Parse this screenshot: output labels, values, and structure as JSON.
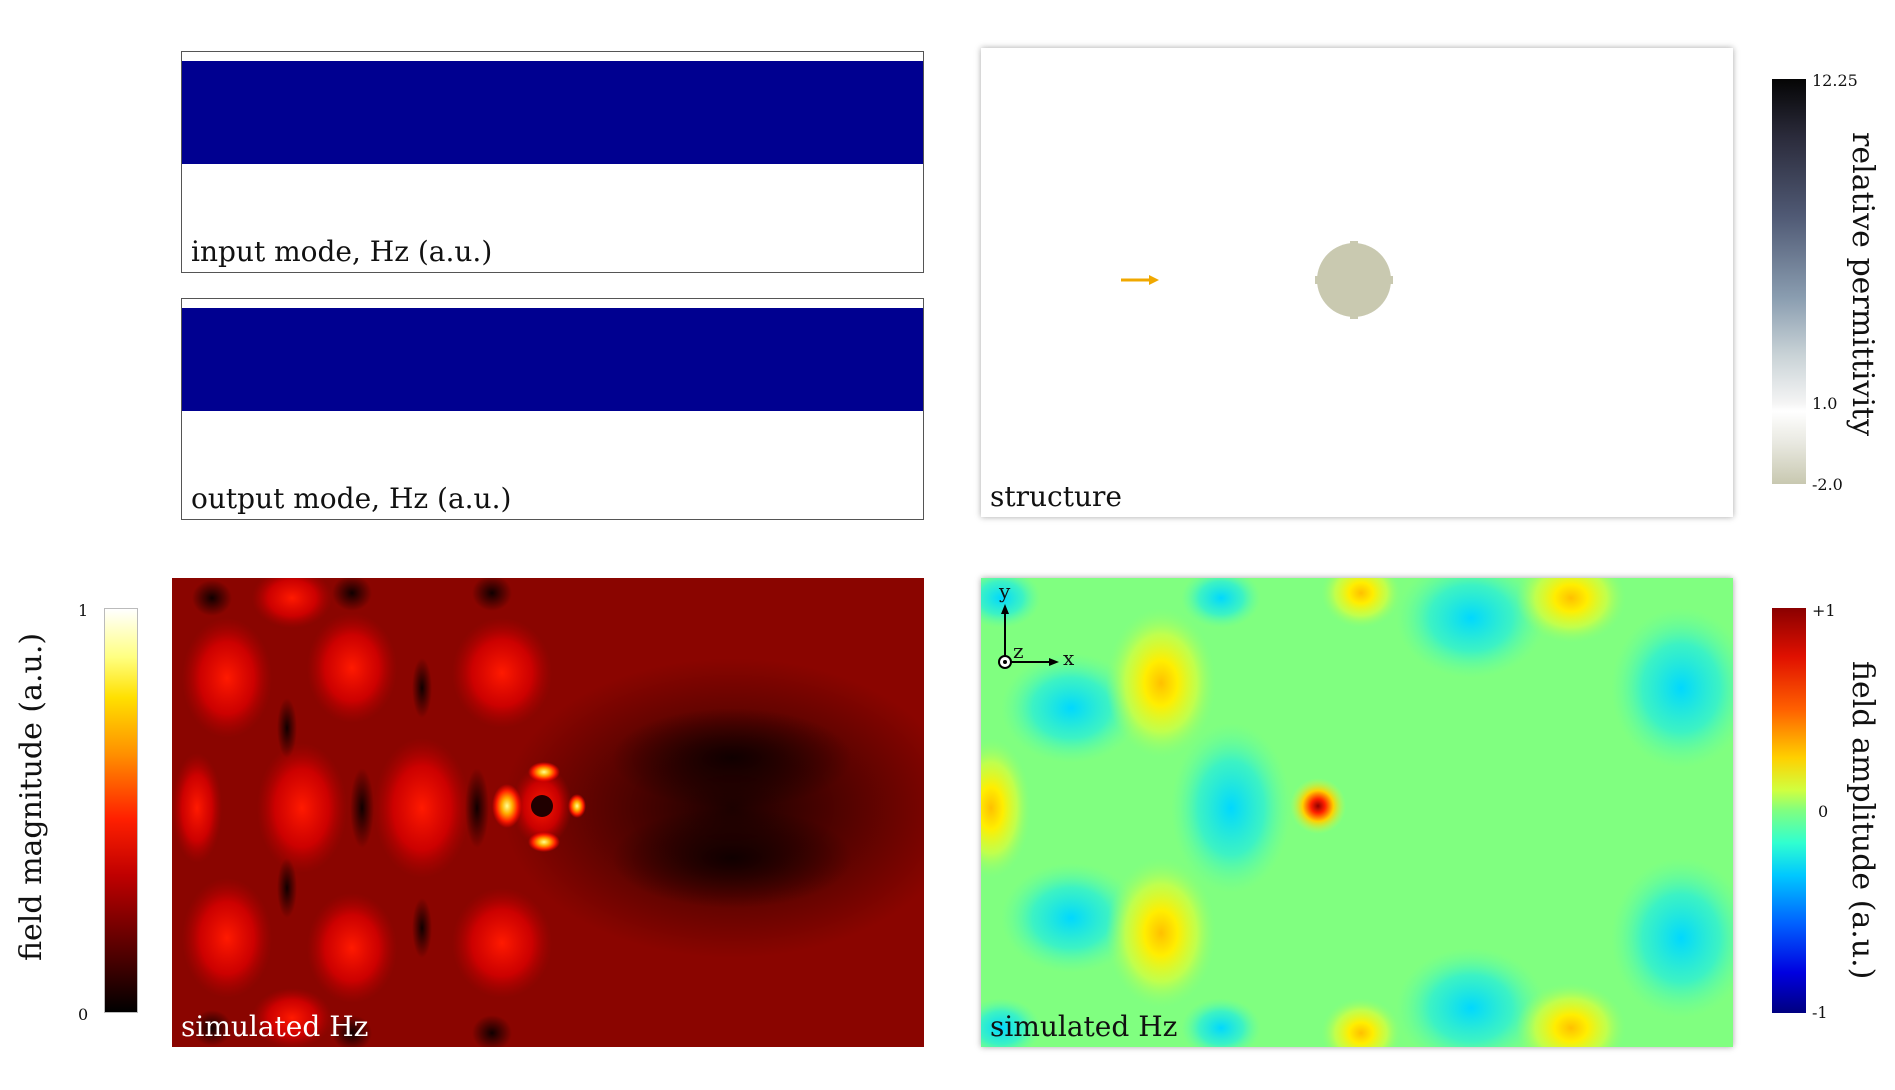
{
  "panels": {
    "input_mode": {
      "label": "input mode, Hz (a.u.)"
    },
    "output_mode": {
      "label": "output mode, Hz (a.u.)"
    },
    "structure": {
      "label": "structure"
    },
    "magnitude": {
      "label": "simulated Hz"
    },
    "amplitude": {
      "label": "simulated Hz"
    }
  },
  "colorbars": {
    "permittivity": {
      "title": "relative permittivity",
      "ticks": [
        "12.25",
        "1.0",
        "-2.0"
      ]
    },
    "magnitude": {
      "title": "field magnitude (a.u.)",
      "ticks": [
        "1",
        "0"
      ]
    },
    "amplitude": {
      "title": "field amplitude (a.u.)",
      "ticks": [
        "+1",
        "0",
        "-1"
      ]
    }
  },
  "axes": {
    "y": "y",
    "z": "z",
    "x": "x"
  },
  "colors": {
    "mode_band": "#000090",
    "source_arrow": "#f0a800",
    "scatterer": "#c9c9b0"
  }
}
